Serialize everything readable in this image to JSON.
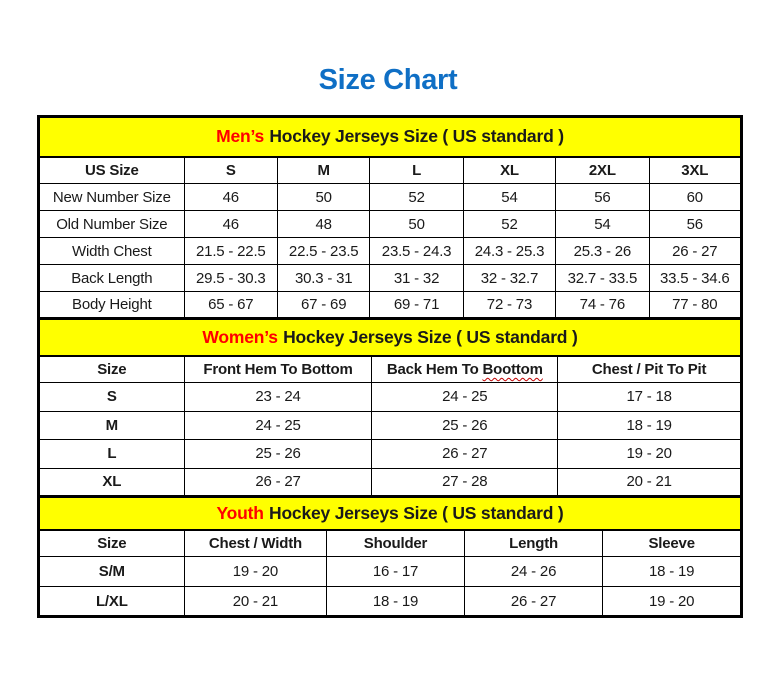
{
  "title": "Size Chart",
  "colors": {
    "title_blue": "#0f6fc5",
    "banner_yellow": "#ffff00",
    "highlight_red": "#ff0000",
    "squiggle_red": "#c00000",
    "border_black": "#000000",
    "text_black": "#1a1a1a"
  },
  "tables": {
    "men": {
      "banner": {
        "highlight": "Men’s",
        "rest": "Hockey Jerseys Size ( US standard )"
      },
      "headers": [
        "US Size",
        "S",
        "M",
        "L",
        "XL",
        "2XL",
        "3XL"
      ],
      "rows": [
        {
          "label": "New Number Size",
          "cells": [
            "46",
            "50",
            "52",
            "54",
            "56",
            "60"
          ]
        },
        {
          "label": "Old Number Size",
          "cells": [
            "46",
            "48",
            "50",
            "52",
            "54",
            "56"
          ]
        },
        {
          "label": "Width Chest",
          "cells": [
            "21.5 - 22.5",
            "22.5 - 23.5",
            "23.5 - 24.3",
            "24.3 - 25.3",
            "25.3 - 26",
            "26 - 27"
          ]
        },
        {
          "label": "Back Length",
          "cells": [
            "29.5 - 30.3",
            "30.3 - 31",
            "31 - 32",
            "32 - 32.7",
            "32.7 - 33.5",
            "33.5 - 34.6"
          ]
        },
        {
          "label": "Body Height",
          "cells": [
            "65 - 67",
            "67 - 69",
            "69 - 71",
            "72 - 73",
            "74 - 76",
            "77 - 80"
          ]
        }
      ]
    },
    "women": {
      "banner": {
        "highlight": "Women’s",
        "rest": "Hockey Jerseys Size ( US standard )"
      },
      "headers": [
        "Size",
        "Front Hem To Bottom",
        {
          "prefix": "Back Hem To ",
          "wavy": "Boottom"
        },
        "Chest / Pit To Pit"
      ],
      "rows": [
        {
          "label": "S",
          "cells": [
            "23 - 24",
            "24 - 25",
            "17 - 18"
          ]
        },
        {
          "label": "M",
          "cells": [
            "24 - 25",
            "25 - 26",
            "18 - 19"
          ]
        },
        {
          "label": "L",
          "cells": [
            "25 - 26",
            "26 - 27",
            "19 - 20"
          ]
        },
        {
          "label": "XL",
          "cells": [
            "26 - 27",
            "27 - 28",
            "20 - 21"
          ]
        }
      ]
    },
    "youth": {
      "banner": {
        "highlight": "Youth",
        "rest": "Hockey Jerseys Size ( US standard )"
      },
      "headers": [
        "Size",
        "Chest / Width",
        "Shoulder",
        "Length",
        "Sleeve"
      ],
      "rows": [
        {
          "label": "S/M",
          "cells": [
            "19 - 20",
            "16 - 17",
            "24 - 26",
            "18 - 19"
          ]
        },
        {
          "label": "L/XL",
          "cells": [
            "20 - 21",
            "18 - 19",
            "26 - 27",
            "19 - 20"
          ]
        }
      ]
    }
  }
}
